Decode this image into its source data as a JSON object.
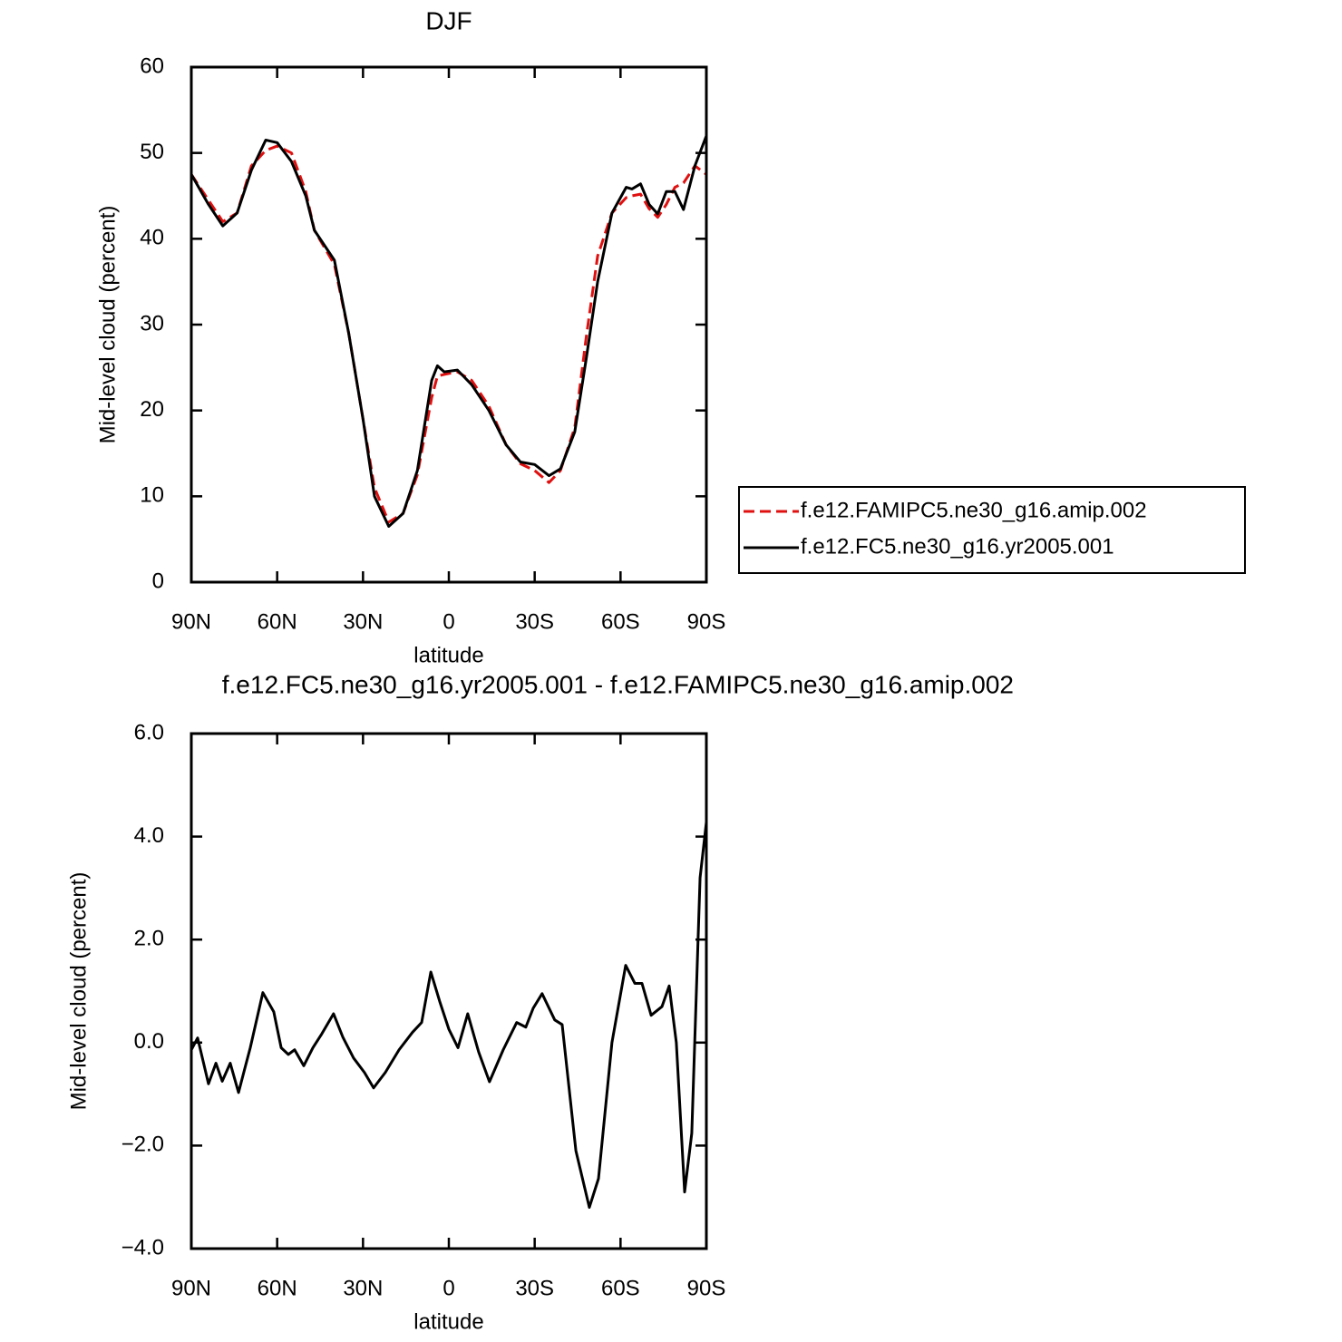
{
  "chart_data": [
    {
      "type": "line",
      "title": "DJF",
      "xlabel": "latitude",
      "ylabel": "Mid-level cloud (percent)",
      "x": [
        90,
        84,
        79,
        74,
        69,
        64,
        60,
        55,
        50,
        47,
        40,
        35,
        30,
        26,
        21,
        16,
        11,
        6,
        4,
        1.6,
        -3,
        -8,
        -14,
        -20,
        -25,
        -30,
        -35,
        -39,
        -44,
        -48,
        -52,
        -57,
        -62,
        -64,
        -67,
        -70,
        -73,
        -76,
        -79,
        -82,
        -86,
        -90
      ],
      "series": [
        {
          "name": "f.e12.FAMIPC5.ne30_g16.amip.002",
          "color": "#e01010",
          "line_style": "dashed",
          "values": [
            47.5,
            44.5,
            42,
            43,
            48.5,
            50.3,
            50.8,
            50,
            45.5,
            41,
            37,
            29,
            19,
            11,
            7,
            8,
            12.5,
            21.5,
            24,
            24.2,
            24.5,
            23.5,
            20.5,
            16,
            13.8,
            13,
            11.6,
            13,
            18,
            28.5,
            38,
            43,
            44.8,
            45,
            45.2,
            43.5,
            42.5,
            44,
            46,
            46.5,
            48.5,
            47.5
          ]
        },
        {
          "name": "f.e12.FC5.ne30_g16.yr2005.001",
          "color": "#000000",
          "line_style": "solid",
          "values": [
            47.5,
            44,
            41.5,
            43,
            48,
            51.5,
            51.2,
            49,
            45,
            41,
            37.5,
            29,
            19,
            10,
            6.5,
            8,
            13,
            23.5,
            25.2,
            24.5,
            24.7,
            23,
            20,
            16,
            14,
            13.7,
            12.4,
            13.2,
            17.5,
            26,
            35,
            43,
            46,
            45.8,
            46.4,
            44,
            42.9,
            45.5,
            45.5,
            43.4,
            48.5,
            52
          ]
        }
      ],
      "xlim": [
        90,
        -90
      ],
      "xticks": [
        {
          "value": 90,
          "label": "90N"
        },
        {
          "value": 60,
          "label": "60N"
        },
        {
          "value": 30,
          "label": "30N"
        },
        0,
        {
          "value": -30,
          "label": "30S"
        },
        {
          "value": -60,
          "label": "60S"
        },
        {
          "value": -90,
          "label": "90S"
        }
      ],
      "ylim": [
        0,
        60
      ],
      "yticks": [
        0,
        10,
        20,
        30,
        40,
        50,
        60
      ],
      "legend": "right"
    },
    {
      "type": "line",
      "title": "f.e12.FC5.ne30_g16.yr2005.001 - f.e12.FAMIPC5.ne30_g16.amip.002",
      "xlabel": "latitude",
      "ylabel": "Mid-level cloud (percent)",
      "x": [
        90,
        87.8,
        84,
        81.4,
        79.2,
        76.4,
        73.5,
        71.3,
        69.4,
        65,
        61.2,
        58.6,
        56.1,
        53.9,
        50.7,
        47.5,
        44.4,
        40.3,
        37,
        33.3,
        29.5,
        26.3,
        22.2,
        17.4,
        12.7,
        9.5,
        6.3,
        3.2,
        0,
        -3.2,
        -6.6,
        -10.4,
        -14.2,
        -19,
        -23.7,
        -26.9,
        -29.5,
        -32.6,
        -37,
        -39.6,
        -44.4,
        -49.1,
        -52.3,
        -57,
        -61.8,
        -65,
        -67.5,
        -70.7,
        -74.5,
        -77,
        -79.5,
        -82.4,
        -84.9,
        -87.8,
        -90
      ],
      "series": [
        {
          "color": "#000000",
          "line_style": "solid",
          "values": [
            -0.14,
            0.09,
            -0.8,
            -0.4,
            -0.75,
            -0.4,
            -0.97,
            -0.5,
            -0.1,
            0.97,
            0.6,
            -0.1,
            -0.23,
            -0.14,
            -0.45,
            -0.1,
            0.17,
            0.56,
            0.1,
            -0.3,
            -0.58,
            -0.88,
            -0.58,
            -0.14,
            0.2,
            0.39,
            1.37,
            0.8,
            0.26,
            -0.1,
            0.56,
            -0.18,
            -0.76,
            -0.14,
            0.39,
            0.3,
            0.67,
            0.95,
            0.44,
            0.35,
            -2.1,
            -3.2,
            -2.64,
            0,
            1.5,
            1.15,
            1.15,
            0.53,
            0.7,
            1.1,
            0,
            -2.9,
            -1.76,
            3.2,
            4.28
          ]
        }
      ],
      "xlim": [
        90,
        -90
      ],
      "xticks": [
        {
          "value": 90,
          "label": "90N"
        },
        {
          "value": 60,
          "label": "60N"
        },
        {
          "value": 30,
          "label": "30N"
        },
        0,
        {
          "value": -30,
          "label": "30S"
        },
        {
          "value": -60,
          "label": "60S"
        },
        {
          "value": -90,
          "label": "90S"
        }
      ],
      "ylim": [
        -4,
        6
      ],
      "yticks": [
        {
          "value": -4,
          "label": "−4.0"
        },
        {
          "value": -2,
          "label": "−2.0"
        },
        {
          "value": 0,
          "label": "0.0"
        },
        {
          "value": 2,
          "label": "2.0"
        },
        {
          "value": 4,
          "label": "4.0"
        },
        {
          "value": 6,
          "label": "6.0"
        }
      ]
    }
  ]
}
